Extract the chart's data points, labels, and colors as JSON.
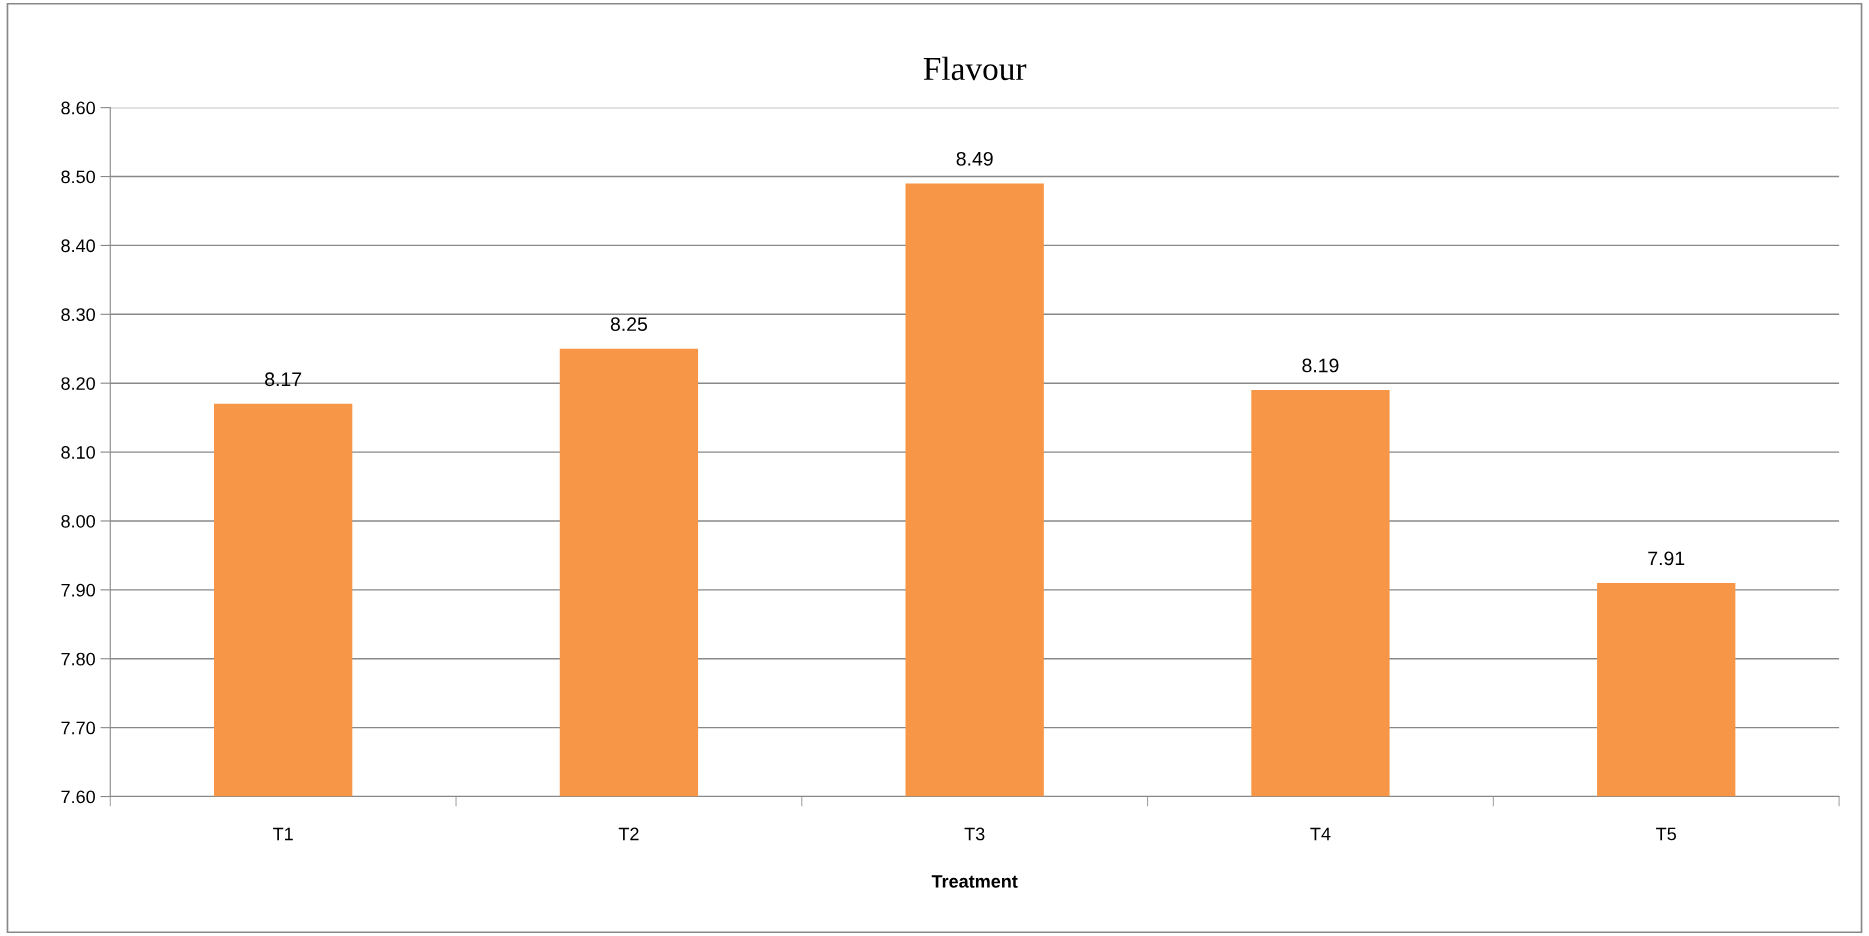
{
  "chart_data": {
    "type": "bar",
    "title": "Flavour",
    "xlabel": "Treatment",
    "categories": [
      "T1",
      "T2",
      "T3",
      "T4",
      "T5"
    ],
    "values": [
      8.17,
      8.25,
      8.49,
      8.19,
      7.91
    ],
    "color": "#f79646",
    "ylim": [
      7.6,
      8.6
    ],
    "yticks": [
      {
        "value": 7.6,
        "label": "7.60"
      },
      {
        "value": 7.7,
        "label": "7.70"
      },
      {
        "value": 7.8,
        "label": "7.80"
      },
      {
        "value": 7.9,
        "label": "7.90"
      },
      {
        "value": 8.0,
        "label": "8.00"
      },
      {
        "value": 8.1,
        "label": "8.10"
      },
      {
        "value": 8.2,
        "label": "8.20"
      },
      {
        "value": 8.3,
        "label": "8.30"
      },
      {
        "value": 8.4,
        "label": "8.40"
      },
      {
        "value": 8.5,
        "label": "8.50"
      },
      {
        "value": 8.6,
        "label": "8.60"
      }
    ],
    "grid": "y",
    "data_labels": true
  }
}
